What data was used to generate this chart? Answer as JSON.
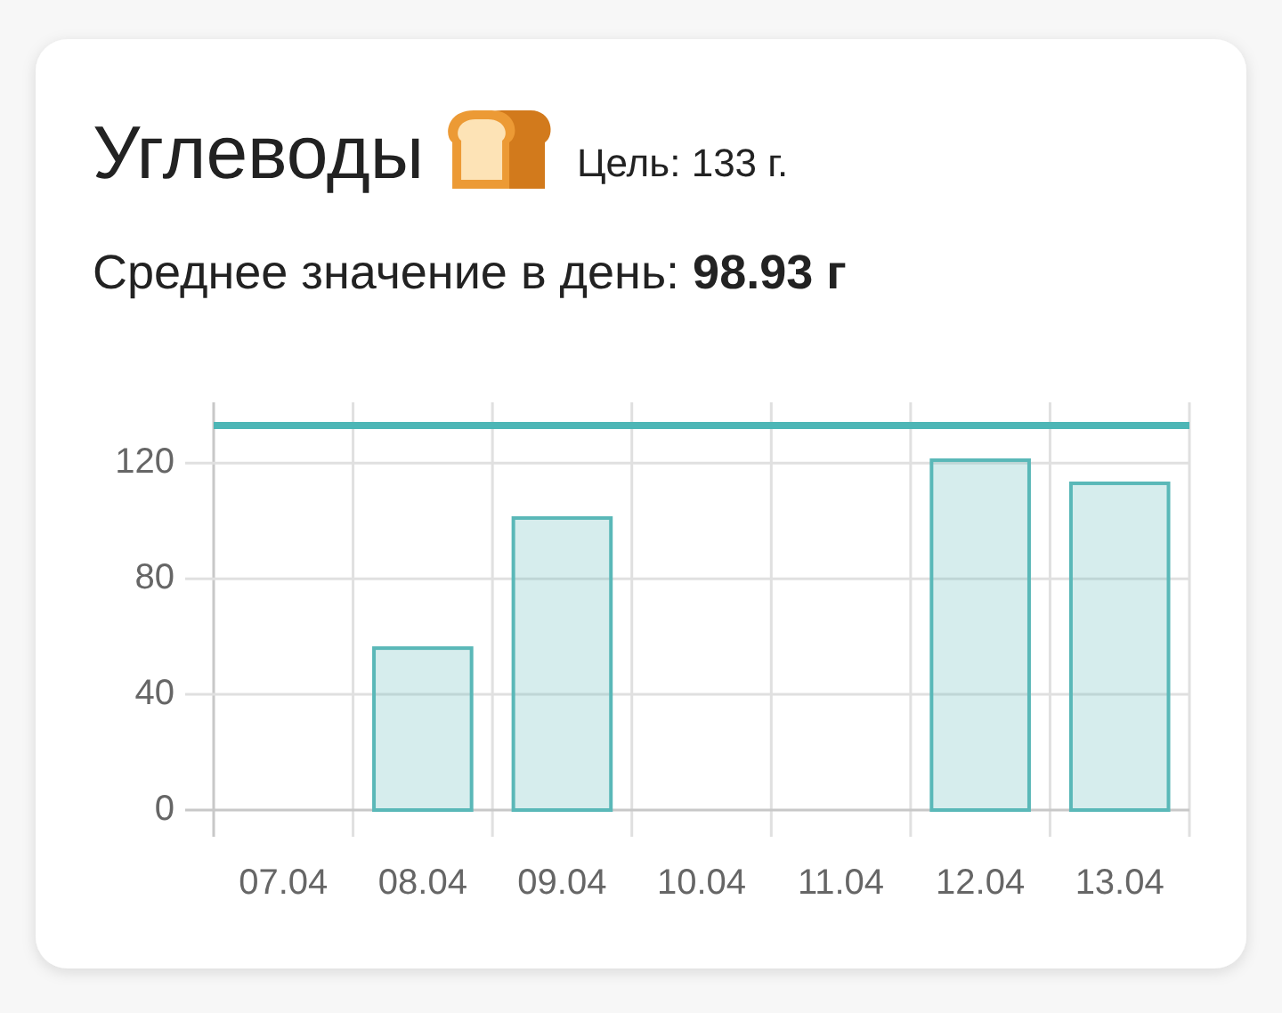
{
  "chart_data": {
    "type": "bar",
    "title": "Углеводы",
    "subtitle": "Среднее значение в день: 98.93 г",
    "annotations": [
      "Цель: 133 г."
    ],
    "categories": [
      "07.04",
      "08.04",
      "09.04",
      "10.04",
      "11.04",
      "12.04",
      "13.04"
    ],
    "values": [
      null,
      56,
      101,
      null,
      null,
      121,
      113
    ],
    "color": "#5ab8b8",
    "ylim": [
      0,
      141
    ],
    "yticks": [
      0,
      40,
      80,
      120
    ],
    "grid": true,
    "ref_lines": [
      {
        "axis": "y",
        "value": 133,
        "color": "#4db6b6"
      }
    ]
  }
}
